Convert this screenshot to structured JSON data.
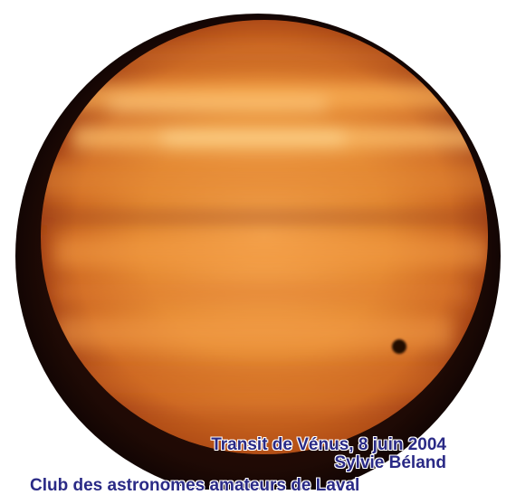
{
  "caption": {
    "event": "Transit de Vénus, 8 juin 2004",
    "photographer": "Sylvie Béland",
    "club": "Club des astronomes amateurs de Laval"
  },
  "image": {
    "subject": "sun-disk-with-venus-silhouette",
    "colors": {
      "background": "#ffffff",
      "vignette_dark": "#1a0804",
      "sun_bright": "#ffc874",
      "sun_mid": "#e58a32",
      "sun_dark": "#b8501a",
      "venus": "#220a04",
      "caption_text": "#2a2a86"
    }
  }
}
